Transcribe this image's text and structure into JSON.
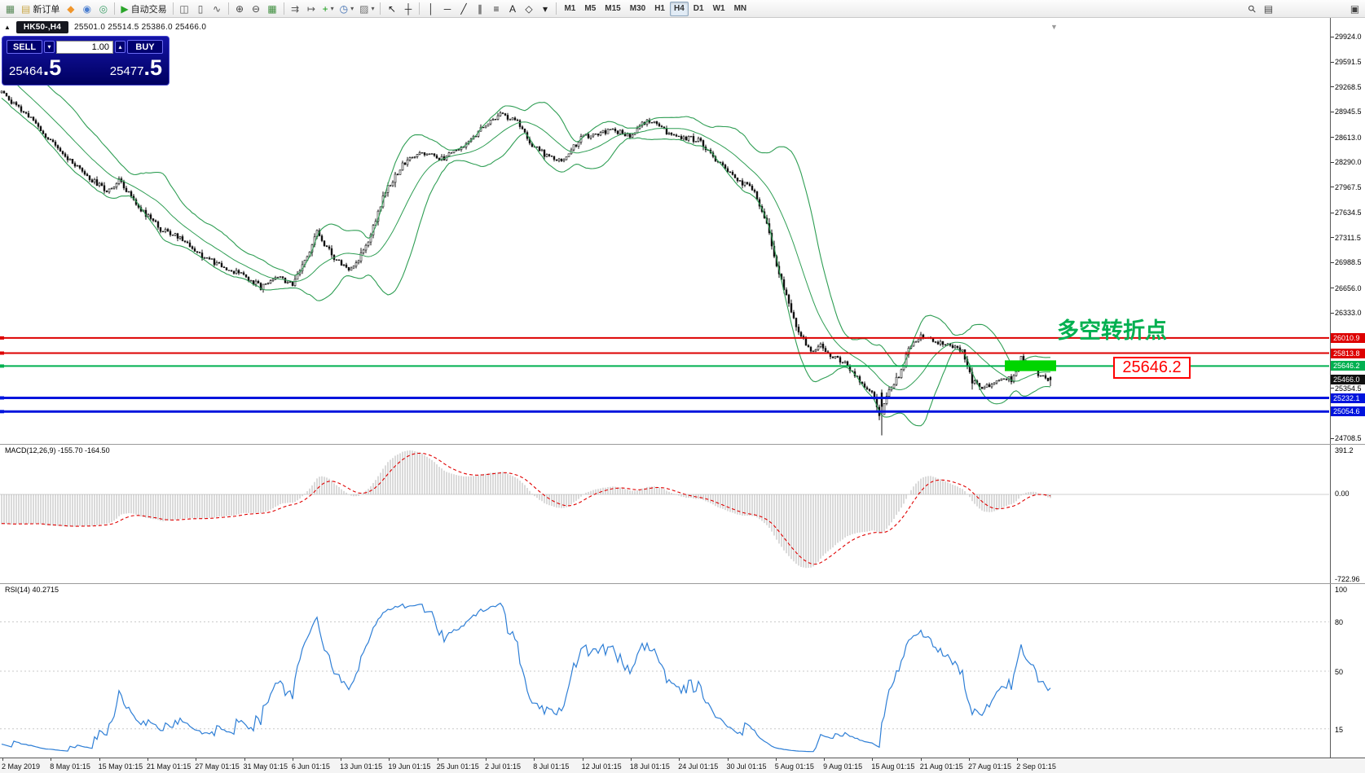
{
  "icons": {
    "collapse": "▲",
    "spin_down": "▾",
    "spin_up": "▴",
    "shift_marker": "▼",
    "caret": "▾"
  },
  "toolbar": {
    "items": [
      {
        "name": "new-chart-button",
        "glyph": "▦",
        "color": "#5a8a5a"
      },
      {
        "name": "new-order-button",
        "glyph": "▤",
        "color": "#caa84a",
        "label": "新订单"
      },
      {
        "name": "mql5-button",
        "glyph": "◆",
        "color": "#f0962c"
      },
      {
        "name": "community-button",
        "glyph": "◉",
        "color": "#4a7ed0"
      },
      {
        "name": "market-button",
        "glyph": "◎",
        "color": "#3fa06a"
      },
      {
        "sep": true
      },
      {
        "name": "autotrading-button",
        "glyph": "▶",
        "color": "#2aa52a",
        "label": "自动交易"
      },
      {
        "sep": true
      },
      {
        "name": "bar-chart-button",
        "glyph": "◫",
        "color": "#555555"
      },
      {
        "name": "candlestick-chart-button",
        "glyph": "▯",
        "color": "#555555"
      },
      {
        "name": "line-chart-button",
        "glyph": "∿",
        "color": "#555555"
      },
      {
        "sep": true
      },
      {
        "name": "zoom-in-button",
        "glyph": "⊕",
        "color": "#444444"
      },
      {
        "name": "zoom-out-button",
        "glyph": "⊖",
        "color": "#444444"
      },
      {
        "name": "tile-windows-button",
        "glyph": "▦",
        "color": "#3f8f3f"
      },
      {
        "sep": true
      },
      {
        "name": "auto-scroll-button",
        "glyph": "⇉",
        "color": "#555555"
      },
      {
        "name": "chart-shift-button",
        "glyph": "↦",
        "color": "#555555"
      },
      {
        "name": "indicators-button",
        "glyph": "+",
        "color": "#139a13",
        "caret": true
      },
      {
        "name": "periods-button",
        "glyph": "◷",
        "color": "#3a6ab0",
        "caret": true
      },
      {
        "name": "templates-button",
        "glyph": "▨",
        "color": "#707070",
        "caret": true
      },
      {
        "sep": true
      },
      {
        "name": "cursor-button",
        "glyph": "↖",
        "color": "#222222"
      },
      {
        "name": "crosshair-button",
        "glyph": "┼",
        "color": "#222222"
      },
      {
        "sep": true
      },
      {
        "name": "vertical-line-button",
        "glyph": "│",
        "color": "#222222"
      },
      {
        "name": "horizontal-line-button",
        "glyph": "─",
        "color": "#222222"
      },
      {
        "name": "trendline-button",
        "glyph": "╱",
        "color": "#222222"
      },
      {
        "name": "equidistant-channel-button",
        "glyph": "∥",
        "color": "#222222"
      },
      {
        "name": "fibonacci-button",
        "glyph": "≡",
        "color": "#222222"
      },
      {
        "name": "text-button",
        "glyph": "A",
        "color": "#222222"
      },
      {
        "name": "shapes-button",
        "glyph": "◇",
        "color": "#222222"
      },
      {
        "name": "objects-dropdown",
        "glyph": "▾",
        "color": "#222222"
      },
      {
        "sep": true
      },
      {
        "tfgroup": true
      },
      {
        "spacer": true
      },
      {
        "name": "search-button",
        "glyph": "⚲",
        "color": "#444444",
        "rot": true
      },
      {
        "name": "data-window-button",
        "glyph": "▤",
        "color": "#444444"
      },
      {
        "name": "help-button",
        "glyph": "▣",
        "color": "#444444",
        "far": true
      }
    ],
    "timeframes": [
      "M1",
      "M5",
      "M15",
      "M30",
      "H1",
      "H4",
      "D1",
      "W1",
      "MN"
    ],
    "active_timeframe": "H4"
  },
  "chart_header": {
    "symbol_tab": "HK50-,H4",
    "ohlc": "25501.0 25514.5 25386.0 25466.0"
  },
  "trade_panel": {
    "sell_label": "SELL",
    "buy_label": "BUY",
    "volume": "1.00",
    "sell_price": {
      "main": "25464",
      "big": ".5"
    },
    "buy_price": {
      "main": "25477",
      "big": ".5"
    }
  },
  "price_scale": {
    "ticks": [
      {
        "label": "29924.0",
        "price": 29924.0,
        "kind": "plain"
      },
      {
        "label": "29591.5",
        "price": 29591.5,
        "kind": "plain"
      },
      {
        "label": "29268.5",
        "price": 29268.5,
        "kind": "plain"
      },
      {
        "label": "28945.5",
        "price": 28945.5,
        "kind": "plain"
      },
      {
        "label": "28613.0",
        "price": 28613.0,
        "kind": "plain"
      },
      {
        "label": "28290.0",
        "price": 28290.0,
        "kind": "plain"
      },
      {
        "label": "27967.5",
        "price": 27967.5,
        "kind": "plain"
      },
      {
        "label": "27634.5",
        "price": 27634.5,
        "kind": "plain"
      },
      {
        "label": "27311.5",
        "price": 27311.5,
        "kind": "plain"
      },
      {
        "label": "26988.5",
        "price": 26988.5,
        "kind": "plain"
      },
      {
        "label": "26656.0",
        "price": 26656.0,
        "kind": "plain"
      },
      {
        "label": "26333.0",
        "price": 26333.0,
        "kind": "plain"
      },
      {
        "label": "26010.9",
        "price": 26010.9,
        "kind": "red"
      },
      {
        "label": "25813.8",
        "price": 25813.8,
        "kind": "red"
      },
      {
        "label": "25646.2",
        "price": 25646.2,
        "kind": "green"
      },
      {
        "label": "25466.0",
        "price": 25466.0,
        "kind": "black"
      },
      {
        "label": "25354.5",
        "price": 25354.5,
        "kind": "plain"
      },
      {
        "label": "25232.1",
        "price": 25232.1,
        "kind": "blue"
      },
      {
        "label": "25054.6",
        "price": 25054.6,
        "kind": "blue"
      },
      {
        "label": "24708.5",
        "price": 24708.5,
        "kind": "plain"
      }
    ]
  },
  "macd": {
    "label": "MACD(12,26,9) -155.70 -164.50",
    "scale": [
      "391.2",
      "0.00",
      "-722.96"
    ]
  },
  "rsi": {
    "label": "RSI(14) 40.2715",
    "levels": [
      100,
      80,
      50,
      15
    ]
  },
  "annotations": {
    "turning_point_text": "多空转折点",
    "price_callout_text": "25646.2"
  },
  "time_axis": {
    "labels": [
      "2 May 2019",
      "8 May 01:15",
      "15 May 01:15",
      "21 May 01:15",
      "27 May 01:15",
      "31 May 01:15",
      "6 Jun 01:15",
      "13 Jun 01:15",
      "19 Jun 01:15",
      "25 Jun 01:15",
      "2 Jul 01:15",
      "8 Jul 01:15",
      "12 Jul 01:15",
      "18 Jul 01:15",
      "24 Jul 01:15",
      "30 Jul 01:15",
      "5 Aug 01:15",
      "9 Aug 01:15",
      "15 Aug 01:15",
      "21 Aug 01:15",
      "27 Aug 01:15",
      "2 Sep 01:15"
    ]
  },
  "chart_data": {
    "type": "candlestick",
    "symbol": "HK50-",
    "timeframe": "H4",
    "visible_date_range": [
      "2 May 2019",
      "2 Sep 2019"
    ],
    "price_axis_range": [
      24708.5,
      29924.0
    ],
    "last_candle_ohlc": {
      "open": 25501.0,
      "high": 25514.5,
      "low": 25386.0,
      "close": 25466.0
    },
    "bid": 25464.5,
    "ask": 25477.5,
    "overlays": [
      {
        "name": "Bollinger Bands",
        "color": "#2f9e54"
      }
    ],
    "horizontal_lines": [
      {
        "price": 26010.9,
        "color": "#dd0000",
        "width": 2
      },
      {
        "price": 25813.8,
        "color": "#dd0000",
        "width": 2
      },
      {
        "price": 25646.2,
        "color": "#00b050",
        "width": 2
      },
      {
        "price": 25232.1,
        "color": "#0014dd",
        "width": 3
      },
      {
        "price": 25054.6,
        "color": "#0014dd",
        "width": 3
      }
    ],
    "highlight_zone": {
      "price_low": 25580,
      "price_high": 25720,
      "color": "#00d500"
    },
    "spike_low": {
      "frac": 0.838,
      "price": 24745
    },
    "close_path_keypoints": [
      [
        0.0,
        29230
      ],
      [
        0.01,
        29060
      ],
      [
        0.03,
        28840
      ],
      [
        0.055,
        28430
      ],
      [
        0.08,
        28120
      ],
      [
        0.1,
        27920
      ],
      [
        0.113,
        28060
      ],
      [
        0.13,
        27720
      ],
      [
        0.152,
        27420
      ],
      [
        0.172,
        27300
      ],
      [
        0.192,
        27070
      ],
      [
        0.212,
        26920
      ],
      [
        0.232,
        26820
      ],
      [
        0.247,
        26670
      ],
      [
        0.262,
        26820
      ],
      [
        0.278,
        26700
      ],
      [
        0.292,
        27080
      ],
      [
        0.3,
        27400
      ],
      [
        0.318,
        27020
      ],
      [
        0.335,
        26890
      ],
      [
        0.35,
        27290
      ],
      [
        0.365,
        27890
      ],
      [
        0.382,
        28260
      ],
      [
        0.4,
        28410
      ],
      [
        0.42,
        28340
      ],
      [
        0.44,
        28510
      ],
      [
        0.46,
        28760
      ],
      [
        0.476,
        28910
      ],
      [
        0.49,
        28840
      ],
      [
        0.506,
        28500
      ],
      [
        0.522,
        28360
      ],
      [
        0.536,
        28310
      ],
      [
        0.552,
        28610
      ],
      [
        0.566,
        28660
      ],
      [
        0.582,
        28710
      ],
      [
        0.6,
        28640
      ],
      [
        0.616,
        28860
      ],
      [
        0.632,
        28700
      ],
      [
        0.65,
        28610
      ],
      [
        0.666,
        28580
      ],
      [
        0.682,
        28300
      ],
      [
        0.7,
        28060
      ],
      [
        0.716,
        27950
      ],
      [
        0.728,
        27560
      ],
      [
        0.74,
        26910
      ],
      [
        0.751,
        26420
      ],
      [
        0.762,
        26020
      ],
      [
        0.772,
        25860
      ],
      [
        0.782,
        25910
      ],
      [
        0.792,
        25760
      ],
      [
        0.802,
        25710
      ],
      [
        0.812,
        25560
      ],
      [
        0.822,
        25360
      ],
      [
        0.831,
        25260
      ],
      [
        0.838,
        24980
      ],
      [
        0.846,
        25340
      ],
      [
        0.856,
        25520
      ],
      [
        0.866,
        25910
      ],
      [
        0.876,
        26040
      ],
      [
        0.886,
        25990
      ],
      [
        0.896,
        25950
      ],
      [
        0.906,
        25900
      ],
      [
        0.916,
        25850
      ],
      [
        0.925,
        25460
      ],
      [
        0.935,
        25360
      ],
      [
        0.945,
        25410
      ],
      [
        0.955,
        25510
      ],
      [
        0.964,
        25460
      ],
      [
        0.972,
        25760
      ],
      [
        0.981,
        25650
      ],
      [
        0.99,
        25530
      ],
      [
        1.0,
        25466
      ]
    ],
    "indicators": [
      {
        "name": "MACD",
        "params": [
          12,
          26,
          9
        ],
        "current": [
          -155.7,
          -164.5
        ],
        "scale_extremes": [
          391.2,
          -722.96
        ]
      },
      {
        "name": "RSI",
        "params": [
          14
        ],
        "current": 40.2715
      }
    ]
  }
}
